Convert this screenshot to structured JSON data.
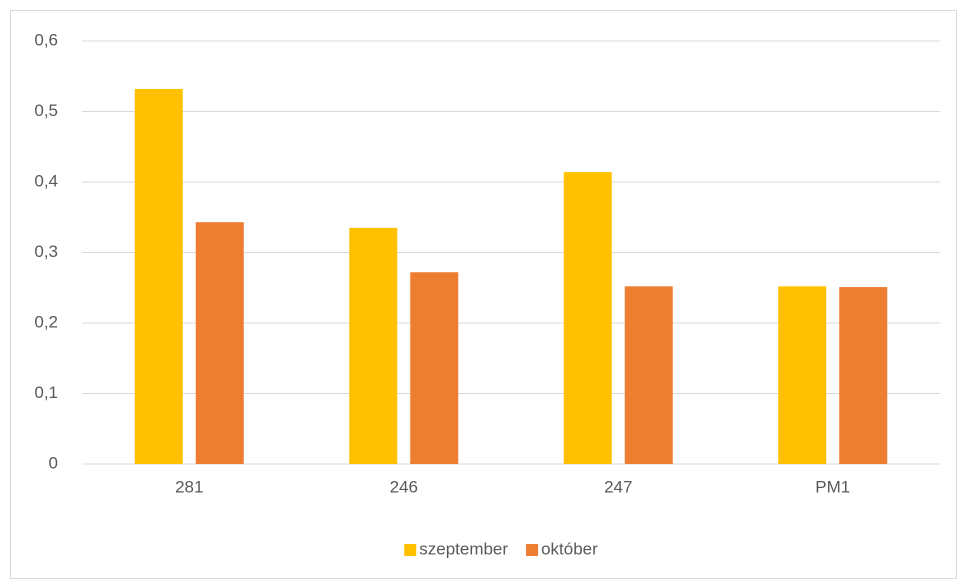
{
  "chart_data": {
    "type": "bar",
    "categories": [
      "281",
      "246",
      "247",
      "PM1"
    ],
    "series": [
      {
        "name": "szeptember",
        "color": "#FFC000",
        "values": [
          0.532,
          0.335,
          0.414,
          0.252
        ]
      },
      {
        "name": "október",
        "color": "#ED7D31",
        "values": [
          0.343,
          0.272,
          0.252,
          0.251
        ]
      }
    ],
    "ylim": [
      0,
      0.6
    ],
    "yticks": [
      0,
      {
        "value": 0.1,
        "label": "0,1"
      },
      {
        "value": 0.2,
        "label": "0,2"
      },
      {
        "value": 0.3,
        "label": "0,3"
      },
      {
        "value": 0.4,
        "label": "0,4"
      },
      {
        "value": 0.5,
        "label": "0,5"
      },
      {
        "value": 0.6,
        "label": "0,6"
      }
    ],
    "grid": true,
    "legend": "bottom"
  }
}
